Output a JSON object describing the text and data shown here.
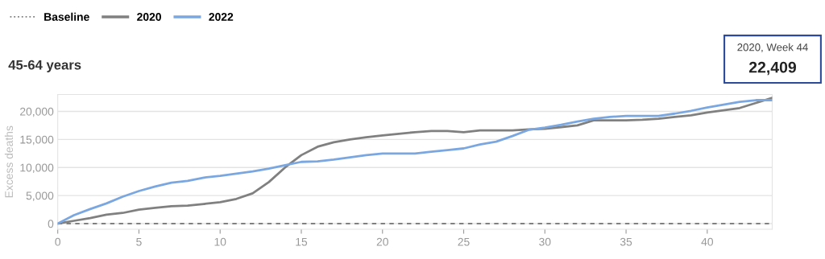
{
  "chart_data": {
    "type": "line",
    "title": "45-64 years",
    "ylabel": "Excess deaths",
    "x": [
      0,
      1,
      2,
      3,
      4,
      5,
      6,
      7,
      8,
      9,
      10,
      11,
      12,
      13,
      14,
      15,
      16,
      17,
      18,
      19,
      20,
      21,
      22,
      23,
      24,
      25,
      26,
      27,
      28,
      29,
      30,
      31,
      32,
      33,
      34,
      35,
      36,
      37,
      38,
      39,
      40,
      41,
      42,
      43,
      44
    ],
    "series": [
      {
        "name": "2020",
        "color": "#808080",
        "values": [
          0,
          500,
          1000,
          1600,
          1900,
          2500,
          2800,
          3100,
          3200,
          3500,
          3800,
          4400,
          5400,
          7400,
          10000,
          12200,
          13700,
          14500,
          15000,
          15400,
          15700,
          16000,
          16300,
          16500,
          16500,
          16300,
          16600,
          16600,
          16600,
          16800,
          16900,
          17200,
          17500,
          18400,
          18400,
          18400,
          18500,
          18700,
          19000,
          19300,
          19800,
          20200,
          20600,
          21500,
          22409
        ]
      },
      {
        "name": "2022",
        "color": "#7ba7e1",
        "values": [
          0,
          1500,
          2600,
          3600,
          4800,
          5800,
          6600,
          7300,
          7600,
          8200,
          8500,
          8900,
          9300,
          9800,
          10400,
          11000,
          11100,
          11400,
          11800,
          12200,
          12500,
          12500,
          12500,
          12800,
          13100,
          13400,
          14100,
          14600,
          15600,
          16700,
          17100,
          17600,
          18200,
          18700,
          19000,
          19200,
          19200,
          19200,
          19600,
          20100,
          20700,
          21200,
          21700,
          22000,
          22000
        ]
      }
    ],
    "ref_lines": [
      {
        "axis": "y",
        "value": 0,
        "label": "Baseline",
        "color": "#808080",
        "line_style": "dashed"
      }
    ],
    "annotations": [
      "2020, Week 44",
      "22,409"
    ],
    "xlim": [
      0,
      44
    ],
    "xticks": [
      0,
      5,
      10,
      15,
      20,
      25,
      30,
      35,
      40
    ],
    "ylim": [
      -1000,
      23000
    ],
    "yticks": [
      0,
      {
        "value": 5000,
        "label": "5,000"
      },
      {
        "value": 10000,
        "label": "10,000"
      },
      {
        "value": 15000,
        "label": "15,000"
      },
      {
        "value": 20000,
        "label": "20,000"
      }
    ],
    "grid": "y",
    "legend": "top left",
    "marker": "none",
    "line_style": "solid"
  }
}
